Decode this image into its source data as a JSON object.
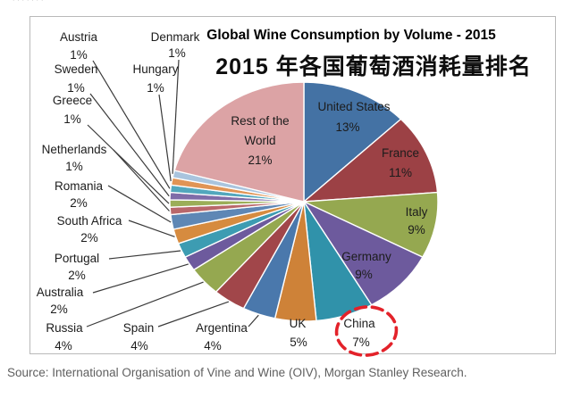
{
  "page": {
    "top_edge_fragment": "·······",
    "source_note": "Source: International Organisation of Vine and Wine (OIV), Morgan Stanley Research."
  },
  "chart": {
    "title": "Global Wine Consumption by Volume - 2015",
    "subtitle_zh": "2015 年各国葡萄酒消耗量排名"
  },
  "chart_data": {
    "type": "pie",
    "title": "Global Wine Consumption by Volume - 2015",
    "subtitle": "2015 年各国葡萄酒消耗量排名",
    "unit": "percent",
    "order": "clockwise-from-top",
    "slices": [
      {
        "label": "United States",
        "value": 13,
        "color": "#4472A4",
        "label_placement": "inside"
      },
      {
        "label": "France",
        "value": 11,
        "color": "#9C4145",
        "label_placement": "inside"
      },
      {
        "label": "Italy",
        "value": 9,
        "color": "#95A850",
        "label_placement": "inside"
      },
      {
        "label": "Germany",
        "value": 9,
        "color": "#6D5A9D",
        "label_placement": "inside"
      },
      {
        "label": "China",
        "value": 7,
        "color": "#3092AA",
        "label_placement": "outside",
        "annotated": true
      },
      {
        "label": "UK",
        "value": 5,
        "color": "#CE8238",
        "label_placement": "outside"
      },
      {
        "label": "Argentina",
        "value": 4,
        "color": "#4A78AC",
        "label_placement": "outside"
      },
      {
        "label": "Spain",
        "value": 4,
        "color": "#A1464A",
        "label_placement": "outside"
      },
      {
        "label": "Russia",
        "value": 4,
        "color": "#95A850",
        "label_placement": "outside"
      },
      {
        "label": "Australia",
        "value": 2,
        "color": "#6D5A9D",
        "label_placement": "outside"
      },
      {
        "label": "Portugal",
        "value": 2,
        "color": "#3D9CB2",
        "label_placement": "outside"
      },
      {
        "label": "South Africa",
        "value": 2,
        "color": "#D68B3F",
        "label_placement": "outside"
      },
      {
        "label": "Romania",
        "value": 2,
        "color": "#5E87B5",
        "label_placement": "outside"
      },
      {
        "label": "Netherlands",
        "value": 1,
        "color": "#B9676B",
        "label_placement": "outside"
      },
      {
        "label": "Greece",
        "value": 1,
        "color": "#9BAE58",
        "label_placement": "outside"
      },
      {
        "label": "Sweden",
        "value": 1,
        "color": "#7F6CA8",
        "label_placement": "outside"
      },
      {
        "label": "Austria",
        "value": 1,
        "color": "#52A7BD",
        "label_placement": "outside"
      },
      {
        "label": "Hungary",
        "value": 1,
        "color": "#E09455",
        "label_placement": "outside"
      },
      {
        "label": "Denmark",
        "value": 1,
        "color": "#A9C4DE",
        "label_placement": "outside"
      },
      {
        "label": "Rest of the World",
        "value": 21,
        "color": "#DCA3A5",
        "label_placement": "inside"
      }
    ],
    "annotation": {
      "type": "dashed-ellipse",
      "target": "China",
      "color": "#E3222A",
      "text_highlighted": "China 7%"
    },
    "legend": "none",
    "source": "Source: International Organisation of Vine and Wine (OIV), Morgan Stanley Research."
  }
}
